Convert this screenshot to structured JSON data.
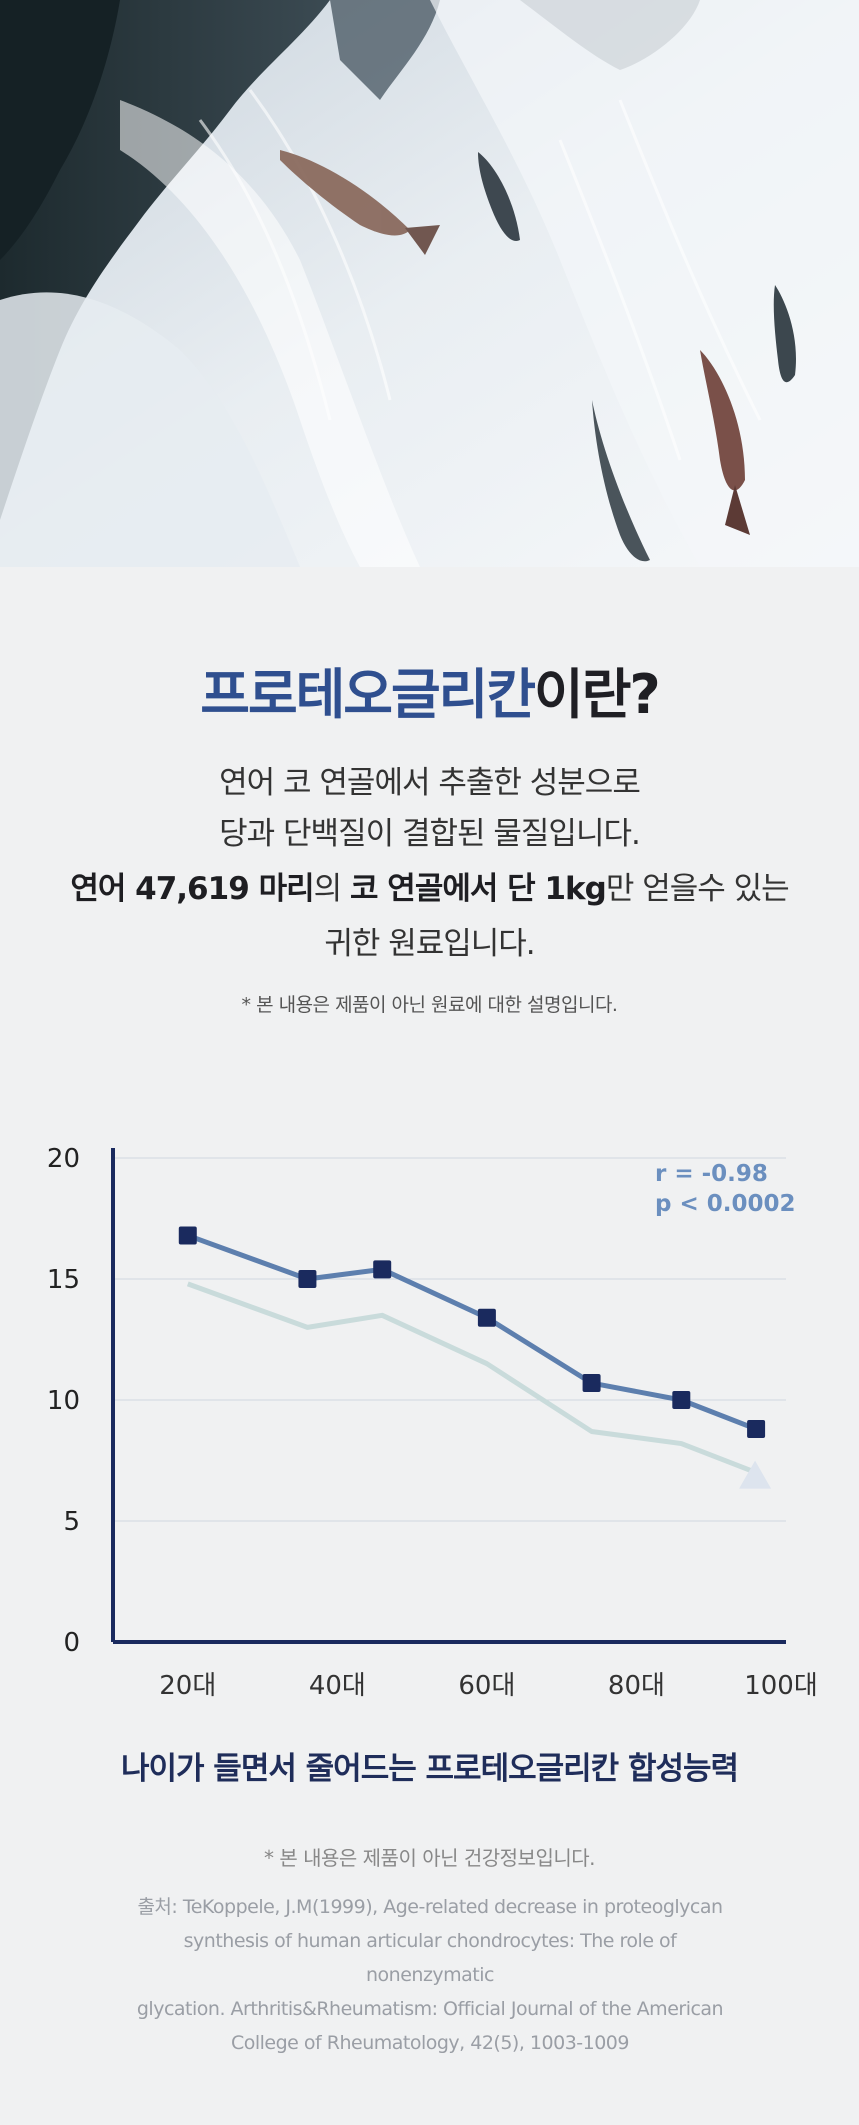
{
  "title": {
    "highlight": "프로테오글리칸",
    "rest": "이란?"
  },
  "intro": {
    "line1": "연어 코 연골에서 추출한 성분으로",
    "line2": "당과 단백질이 결합된 물질입니다.",
    "line3_bold1": "연어 47,619 마리",
    "line3_plain1": "의 ",
    "line3_bold2": "코 연골에서 단 1kg",
    "line3_plain2": "만 얻을수 있는",
    "line4": "귀한 원료입니다."
  },
  "note_material": "* 본 내용은 제품이 아닌 원료에 대한 설명입니다.",
  "chart_data": {
    "type": "line",
    "x_tick_labels": [
      "20대",
      "40대",
      "60대",
      "80대",
      "100대"
    ],
    "xlim": [
      10,
      100
    ],
    "ylim": [
      0,
      20
    ],
    "y_ticks": [
      0,
      5,
      10,
      15,
      20
    ],
    "grid": true,
    "series": [
      {
        "x": [
          20,
          36,
          46,
          60,
          74,
          86,
          96
        ],
        "y": [
          16.8,
          15.0,
          15.4,
          13.4,
          10.7,
          10.0,
          8.8
        ],
        "color": "#5d7fae",
        "marker": "square",
        "marker_color": "#1a2a5e"
      },
      {
        "x": [
          20,
          36,
          46,
          60,
          74,
          86,
          96
        ],
        "y": [
          14.8,
          13.0,
          13.5,
          11.5,
          8.7,
          8.2,
          7.0
        ],
        "color": "#c9dbdb",
        "marker": "triangle-end",
        "marker_color": "#dde4ee"
      }
    ],
    "annotations": [
      "r = -0.98",
      "p < 0.0002"
    ],
    "annotation_color": "#6b8fbf",
    "caption": "나이가 들면서 줄어드는 프로테오글리칸 합성능력"
  },
  "note_health": "* 본 내용은 제품이 아닌 건강정보입니다.",
  "source_lines": [
    "출처: TeKoppele, J.M(1999), Age-related decrease in proteoglycan",
    "synthesis of human articular chondrocytes: The role of nonenzymatic",
    "glycation. Arthritis&Rheumatism: Official Journal of the American",
    "College of Rheumatology, 42(5), 1003-1009"
  ]
}
